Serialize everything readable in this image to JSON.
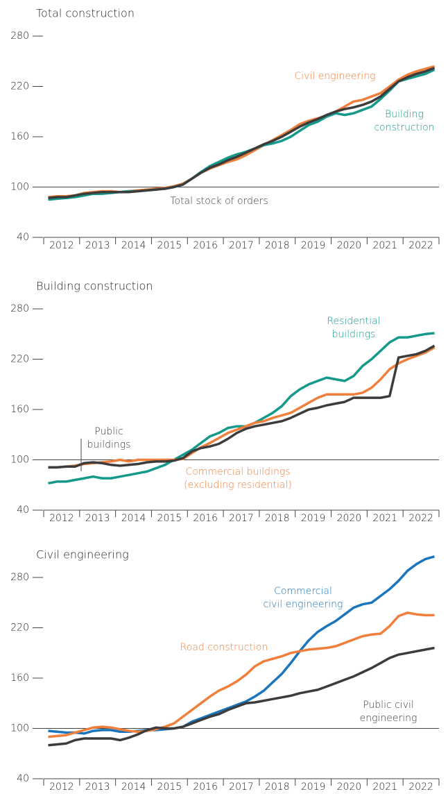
{
  "chart_data": [
    {
      "type": "line",
      "title": "Total construction",
      "xlim": [
        2012,
        2023
      ],
      "xticks": [
        2012,
        2013,
        2014,
        2015,
        2016,
        2017,
        2018,
        2019,
        2020,
        2021,
        2022
      ],
      "ylim": [
        40,
        280
      ],
      "yticks": [
        40,
        100,
        160,
        220,
        280
      ],
      "ref_line": 100,
      "x": [
        2012.125,
        2012.375,
        2012.625,
        2012.875,
        2013.125,
        2013.375,
        2013.625,
        2013.875,
        2014.125,
        2014.375,
        2014.625,
        2014.875,
        2015.125,
        2015.375,
        2015.625,
        2015.875,
        2016.125,
        2016.375,
        2016.625,
        2016.875,
        2017.125,
        2017.375,
        2017.625,
        2017.875,
        2018.125,
        2018.375,
        2018.625,
        2018.875,
        2019.125,
        2019.375,
        2019.625,
        2019.875,
        2020.125,
        2020.375,
        2020.625,
        2020.875,
        2021.125,
        2021.375,
        2021.625,
        2021.875,
        2022.125,
        2022.375,
        2022.625,
        2022.875
      ],
      "series": [
        {
          "color": "#f07f3c",
          "values": [
            88,
            89,
            89,
            90,
            93,
            94,
            95,
            95,
            94,
            95,
            96,
            97,
            98,
            99,
            101,
            104,
            110,
            117,
            122,
            126,
            130,
            133,
            138,
            144,
            150,
            156,
            162,
            168,
            175,
            179,
            182,
            185,
            190,
            196,
            202,
            204,
            208,
            212,
            220,
            228,
            234,
            238,
            241,
            244
          ]
        },
        {
          "color": "#14998a",
          "values": [
            85,
            86,
            87,
            88,
            90,
            92,
            92,
            93,
            94,
            95,
            95,
            96,
            97,
            98,
            100,
            103,
            110,
            118,
            125,
            130,
            135,
            139,
            142,
            146,
            150,
            152,
            155,
            160,
            167,
            174,
            178,
            184,
            188,
            186,
            188,
            192,
            196,
            205,
            215,
            226,
            229,
            232,
            235,
            240
          ]
        },
        {
          "color": "#3c3c3c",
          "values": [
            87,
            88,
            88,
            90,
            92,
            93,
            94,
            94,
            94,
            94,
            95,
            96,
            97,
            98,
            100,
            103,
            110,
            117,
            123,
            127,
            132,
            136,
            141,
            146,
            151,
            155,
            160,
            166,
            172,
            177,
            181,
            186,
            190,
            193,
            195,
            198,
            202,
            208,
            217,
            226,
            231,
            235,
            238,
            242
          ]
        }
      ],
      "annotations": [
        {
          "lines": [
            "Civil engineering"
          ]
        },
        {
          "lines": [
            "Building",
            "construction"
          ]
        },
        {
          "lines": [
            "Total stock of orders"
          ]
        }
      ]
    },
    {
      "type": "line",
      "title": "Building construction",
      "xlim": [
        2012,
        2023
      ],
      "xticks": [
        2012,
        2013,
        2014,
        2015,
        2016,
        2017,
        2018,
        2019,
        2020,
        2021,
        2022
      ],
      "ylim": [
        40,
        280
      ],
      "yticks": [
        40,
        100,
        160,
        220,
        280
      ],
      "ref_line": 100,
      "x": [
        2012.125,
        2012.375,
        2012.625,
        2012.875,
        2013.125,
        2013.375,
        2013.625,
        2013.875,
        2014.125,
        2014.375,
        2014.625,
        2014.875,
        2015.125,
        2015.375,
        2015.625,
        2015.875,
        2016.125,
        2016.375,
        2016.625,
        2016.875,
        2017.125,
        2017.375,
        2017.625,
        2017.875,
        2018.125,
        2018.375,
        2018.625,
        2018.875,
        2019.125,
        2019.375,
        2019.625,
        2019.875,
        2020.125,
        2020.375,
        2020.625,
        2020.875,
        2021.125,
        2021.375,
        2021.625,
        2021.875,
        2022.125,
        2022.375,
        2022.625,
        2022.875
      ],
      "series": [
        {
          "color": "#14998a",
          "values": [
            72,
            74,
            74,
            76,
            78,
            80,
            78,
            78,
            80,
            82,
            84,
            86,
            90,
            94,
            100,
            106,
            112,
            120,
            128,
            132,
            138,
            140,
            140,
            144,
            150,
            156,
            164,
            176,
            184,
            190,
            194,
            198,
            196,
            194,
            200,
            212,
            220,
            230,
            240,
            246,
            246,
            248,
            250,
            251
          ]
        },
        {
          "color": "#f07f3c",
          "values": [
            91,
            91,
            92,
            93,
            95,
            96,
            97,
            98,
            100,
            98,
            100,
            100,
            100,
            100,
            100,
            101,
            108,
            115,
            120,
            126,
            132,
            136,
            140,
            144,
            146,
            150,
            153,
            156,
            162,
            168,
            174,
            178,
            178,
            178,
            178,
            180,
            186,
            196,
            208,
            215,
            220,
            224,
            228,
            234
          ]
        },
        {
          "color": "#3c3c3c",
          "values": [
            91,
            91,
            92,
            92,
            96,
            97,
            96,
            94,
            93,
            94,
            95,
            97,
            98,
            98,
            99,
            102,
            110,
            114,
            116,
            119,
            125,
            132,
            137,
            140,
            142,
            144,
            146,
            150,
            155,
            160,
            162,
            165,
            167,
            169,
            174,
            174,
            174,
            174,
            176,
            222,
            224,
            226,
            230,
            236
          ]
        }
      ],
      "annotations": [
        {
          "lines": [
            "Residential",
            "buildings"
          ]
        },
        {
          "lines": [
            "Public",
            "buildings"
          ]
        },
        {
          "lines": [
            "Commercial buildings",
            "(excluding residential)"
          ]
        }
      ]
    },
    {
      "type": "line",
      "title": "Civil engineering",
      "xlim": [
        2012,
        2023
      ],
      "xticks": [
        2012,
        2013,
        2014,
        2015,
        2016,
        2017,
        2018,
        2019,
        2020,
        2021,
        2022
      ],
      "ylim": [
        40,
        280
      ],
      "yticks": [
        40,
        100,
        160,
        220,
        280
      ],
      "ref_line": 100,
      "x": [
        2012.125,
        2012.375,
        2012.625,
        2012.875,
        2013.125,
        2013.375,
        2013.625,
        2013.875,
        2014.125,
        2014.375,
        2014.625,
        2014.875,
        2015.125,
        2015.375,
        2015.625,
        2015.875,
        2016.125,
        2016.375,
        2016.625,
        2016.875,
        2017.125,
        2017.375,
        2017.625,
        2017.875,
        2018.125,
        2018.375,
        2018.625,
        2018.875,
        2019.125,
        2019.375,
        2019.625,
        2019.875,
        2020.125,
        2020.375,
        2020.625,
        2020.875,
        2021.125,
        2021.375,
        2021.625,
        2021.875,
        2022.125,
        2022.375,
        2022.625,
        2022.875
      ],
      "series": [
        {
          "color": "#1a75bb",
          "values": [
            97,
            96,
            95,
            95,
            94,
            97,
            98,
            98,
            96,
            96,
            97,
            98,
            98,
            99,
            100,
            102,
            108,
            112,
            116,
            120,
            124,
            128,
            132,
            138,
            145,
            155,
            165,
            178,
            192,
            205,
            215,
            222,
            228,
            236,
            244,
            248,
            250,
            258,
            266,
            276,
            288,
            296,
            302,
            305
          ]
        },
        {
          "color": "#f07f3c",
          "values": [
            90,
            91,
            92,
            95,
            98,
            101,
            102,
            101,
            99,
            97,
            96,
            97,
            99,
            102,
            106,
            114,
            122,
            130,
            138,
            145,
            150,
            156,
            164,
            174,
            180,
            183,
            186,
            190,
            192,
            194,
            195,
            196,
            198,
            202,
            206,
            210,
            212,
            213,
            222,
            234,
            238,
            236,
            235,
            235
          ]
        },
        {
          "color": "#3c3c3c",
          "values": [
            80,
            81,
            82,
            86,
            88,
            88,
            88,
            88,
            86,
            89,
            93,
            98,
            101,
            100,
            100,
            102,
            106,
            110,
            114,
            117,
            122,
            126,
            130,
            131,
            133,
            135,
            137,
            139,
            142,
            144,
            146,
            150,
            154,
            158,
            162,
            167,
            172,
            178,
            184,
            188,
            190,
            192,
            194,
            196
          ]
        }
      ],
      "annotations": [
        {
          "lines": [
            "Commercial",
            "civil engineering"
          ]
        },
        {
          "lines": [
            "Road construction"
          ]
        },
        {
          "lines": [
            "Public civil",
            "engineering"
          ]
        }
      ]
    }
  ]
}
